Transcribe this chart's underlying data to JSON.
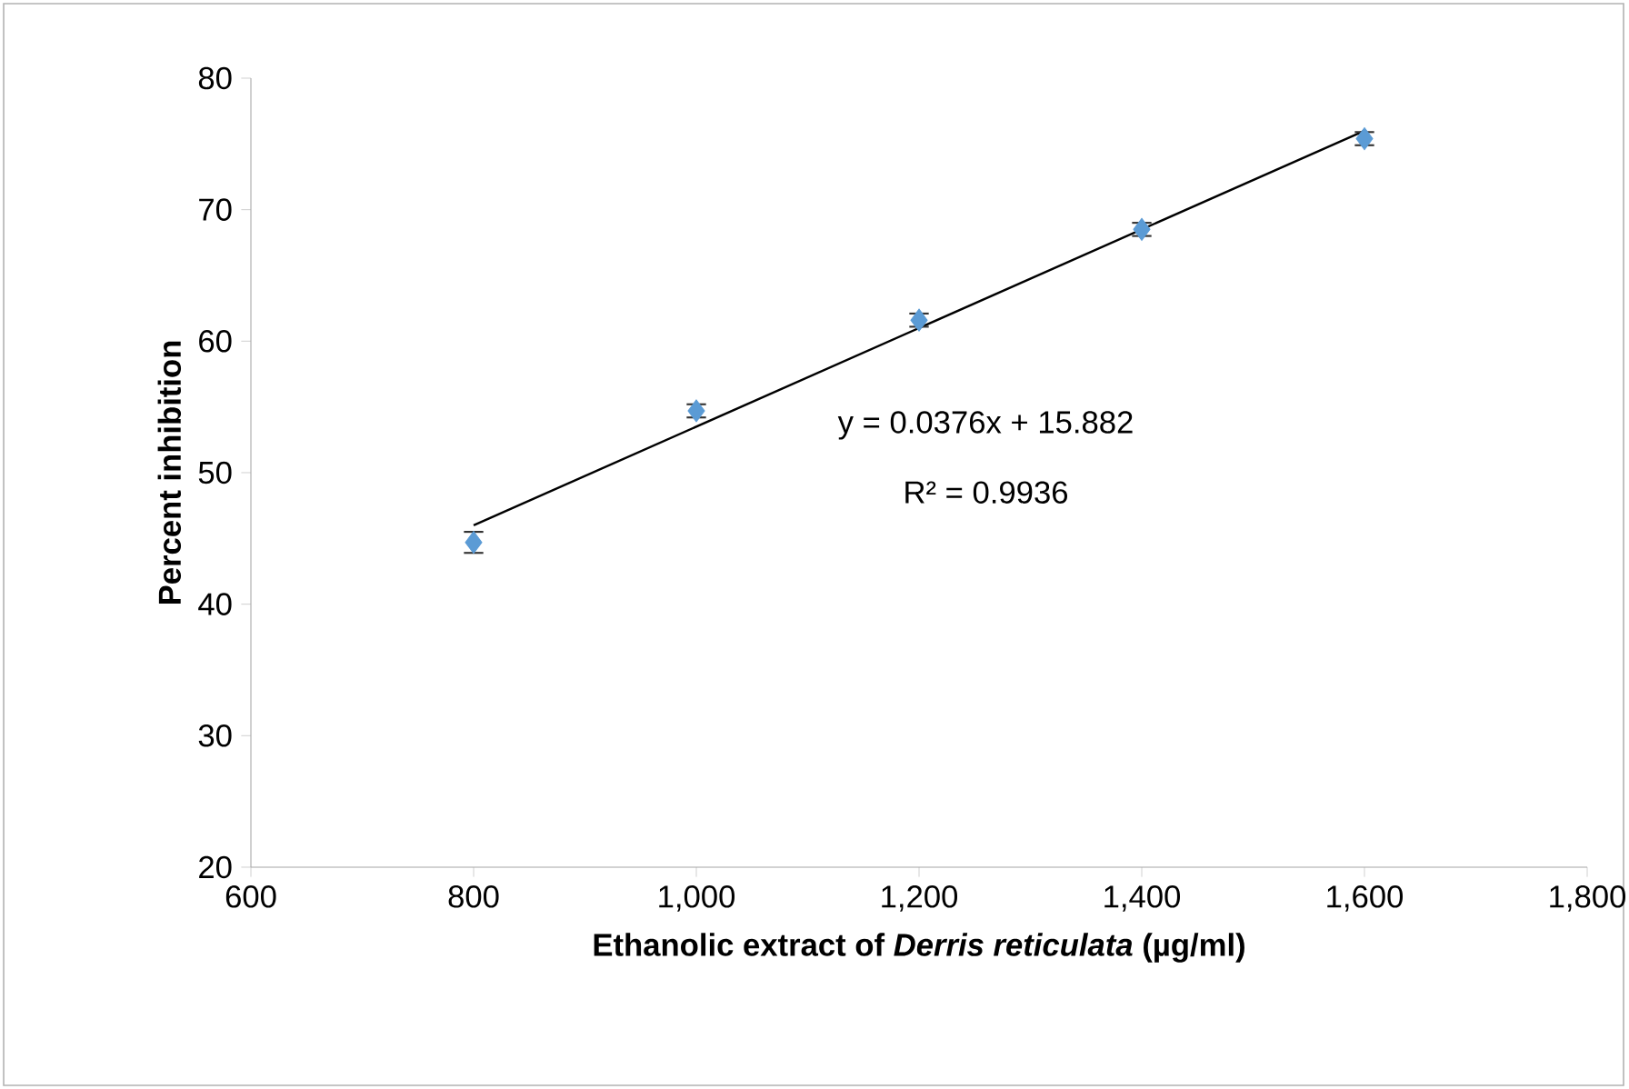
{
  "chart_data": {
    "type": "scatter",
    "xlabel": "Ethanolic extract of *Derris reticulata* (µg/ml)",
    "ylabel": "Percent inhibition",
    "xlim": [
      600,
      1800
    ],
    "ylim": [
      20,
      80
    ],
    "xticks": [
      {
        "value": 600,
        "label": "600"
      },
      {
        "value": 800,
        "label": "800"
      },
      {
        "value": 1000,
        "label": "1,000"
      },
      {
        "value": 1200,
        "label": "1,200"
      },
      {
        "value": 1400,
        "label": "1,400"
      },
      {
        "value": 1600,
        "label": "1,600"
      },
      {
        "value": 1800,
        "label": "1,800"
      }
    ],
    "yticks": [
      20,
      30,
      40,
      50,
      60,
      70,
      80
    ],
    "grid": false,
    "marker": "diamond",
    "series": [
      {
        "type": "scatter",
        "color": "#5b9bd5",
        "x": [
          800,
          1000,
          1200,
          1400,
          1600
        ],
        "values": [
          44.7,
          54.7,
          61.6,
          68.5,
          75.4
        ],
        "errors": [
          0.8,
          0.5,
          0.5,
          0.5,
          0.5
        ]
      },
      {
        "type": "line",
        "color": "#000000",
        "marker": "none",
        "x": [
          800,
          1600
        ],
        "values": [
          46.0,
          76.0
        ]
      }
    ],
    "annotations": [
      "y = 0.0376x + 15.882",
      "R² = 0.9936"
    ]
  }
}
